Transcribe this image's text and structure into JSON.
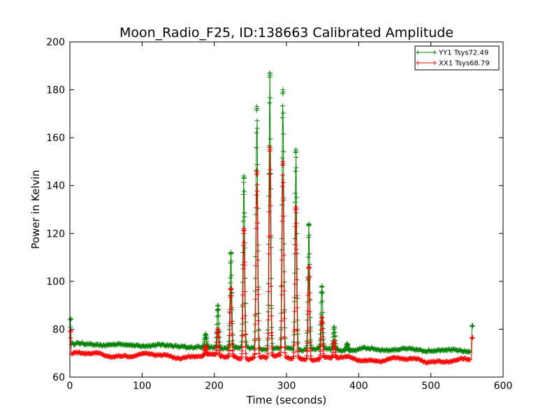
{
  "chart_data": {
    "type": "line",
    "title": "Moon_Radio_F25, ID:138663 Calibrated Amplitude",
    "xlabel": "Time (seconds)",
    "ylabel": "Power in Kelvin",
    "xlim": [
      0,
      600
    ],
    "ylim": [
      60,
      200
    ],
    "xticks": [
      0,
      100,
      200,
      300,
      400,
      500,
      600
    ],
    "yticks": [
      60,
      80,
      100,
      120,
      140,
      160,
      180,
      200
    ],
    "grid": false,
    "legend_position": "top-right",
    "series": [
      {
        "name": "YY1 Tsys72.49",
        "color": "#008000",
        "marker": "+",
        "peaks": [
          [
            188,
            78
          ],
          [
            205,
            90
          ],
          [
            223,
            112
          ],
          [
            241,
            144
          ],
          [
            259,
            173
          ],
          [
            277,
            187
          ],
          [
            295,
            180
          ],
          [
            313,
            155
          ],
          [
            331,
            124
          ],
          [
            349,
            98
          ],
          [
            366,
            81
          ],
          [
            384,
            74
          ]
        ],
        "endpoints": [
          [
            1,
            84
          ],
          [
            557,
            81.5
          ]
        ]
      },
      {
        "name": "XX1 Tsys68.79",
        "color": "#ff0000",
        "marker": "+",
        "peaks": [
          [
            188,
            73
          ],
          [
            205,
            80
          ],
          [
            223,
            97
          ],
          [
            241,
            122
          ],
          [
            259,
            146
          ],
          [
            277,
            156
          ],
          [
            295,
            150
          ],
          [
            313,
            131
          ],
          [
            331,
            106
          ],
          [
            349,
            85
          ],
          [
            366,
            75
          ]
        ],
        "endpoints": [
          [
            1,
            79
          ],
          [
            557,
            76.5
          ]
        ]
      }
    ]
  }
}
